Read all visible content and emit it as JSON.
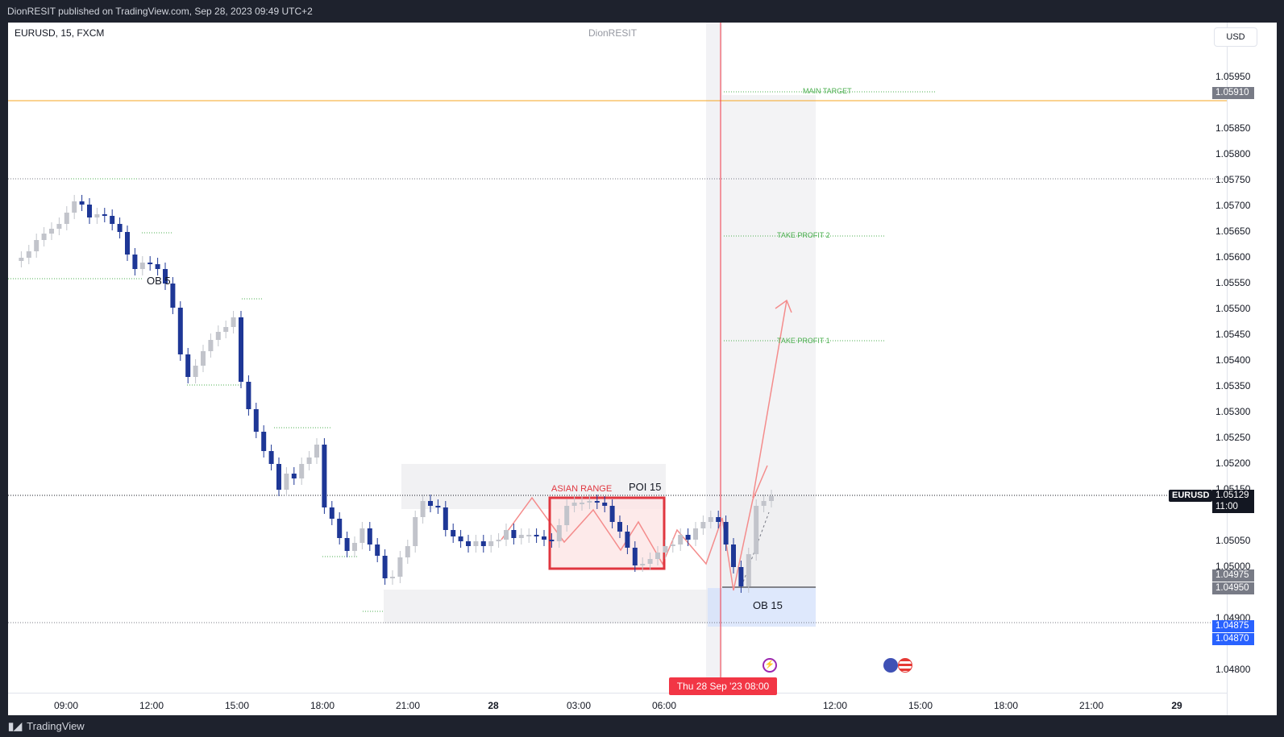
{
  "header": {
    "published_text": "DionRESIT published on TradingView.com, Sep 28, 2023 09:49 UTC+2"
  },
  "chart": {
    "symbol_info": "EURUSD, 15, FXCM",
    "watermark": "DionRESIT",
    "currency_button": "USD",
    "price_axis_labels": [
      "1.05950",
      "1.05850",
      "1.05800",
      "1.05750",
      "1.05700",
      "1.05650",
      "1.05600",
      "1.05550",
      "1.05500",
      "1.05450",
      "1.05400",
      "1.05350",
      "1.05300",
      "1.05250",
      "1.05200",
      "1.05150",
      "1.05050",
      "1.05000",
      "1.04900",
      "1.04800"
    ],
    "time_axis_labels": [
      "09:00",
      "12:00",
      "15:00",
      "18:00",
      "21:00",
      "28",
      "03:00",
      "06:00",
      "12:00",
      "15:00",
      "18:00",
      "21:00",
      "29"
    ],
    "price_tags": {
      "target": "1.05910",
      "current_price": "1.05129",
      "countdown": "11:00",
      "level_a": "1.04975",
      "level_b": "1.04950",
      "level_c": "1.04875",
      "level_d": "1.04870"
    },
    "symbol_tag": "EURUSD",
    "date_tag": "Thu 28 Sep '23   08:00",
    "annotations": {
      "main_target": "MAIN TARGET",
      "take_profit_2": "TAKE PROFIT 2",
      "take_profit_1": "TAKE PROFIT 1",
      "asian_range": "ASIAN RANGE",
      "poi": "POI 15",
      "ob15": "OB 15",
      "ob5": "OB 5"
    },
    "colors": {
      "bull": "#c2c4cb",
      "bear": "#1e3796",
      "target_line": "#f5a623",
      "asian_box": "#e0363f",
      "current_price_tag": "#131722",
      "blue_tag": "#2962ff",
      "grey_tag": "#787b86"
    }
  },
  "footer": {
    "brand": "TradingView"
  }
}
